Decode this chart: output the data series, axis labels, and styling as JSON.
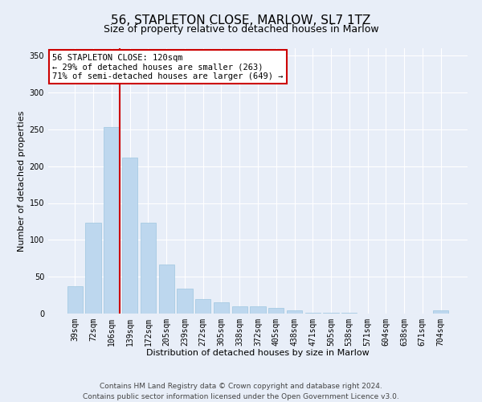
{
  "title": "56, STAPLETON CLOSE, MARLOW, SL7 1TZ",
  "subtitle": "Size of property relative to detached houses in Marlow",
  "xlabel": "Distribution of detached houses by size in Marlow",
  "ylabel": "Number of detached properties",
  "bar_labels": [
    "39sqm",
    "72sqm",
    "106sqm",
    "139sqm",
    "172sqm",
    "205sqm",
    "239sqm",
    "272sqm",
    "305sqm",
    "338sqm",
    "372sqm",
    "405sqm",
    "438sqm",
    "471sqm",
    "505sqm",
    "538sqm",
    "571sqm",
    "604sqm",
    "638sqm",
    "671sqm",
    "704sqm"
  ],
  "bar_values": [
    37,
    123,
    253,
    212,
    123,
    67,
    34,
    20,
    15,
    10,
    10,
    8,
    4,
    1,
    1,
    1,
    0,
    0,
    0,
    0,
    4
  ],
  "bar_color": "#bdd7ee",
  "bar_edge_color": "#9ec6e0",
  "background_color": "#e8eef8",
  "grid_color": "#ffffff",
  "vline_color": "#cc0000",
  "annotation_title": "56 STAPLETON CLOSE: 120sqm",
  "annotation_line1": "← 29% of detached houses are smaller (263)",
  "annotation_line2": "71% of semi-detached houses are larger (649) →",
  "annotation_box_color": "#ffffff",
  "annotation_box_edge": "#cc0000",
  "ylim": [
    0,
    360
  ],
  "yticks": [
    0,
    50,
    100,
    150,
    200,
    250,
    300,
    350
  ],
  "footer_line1": "Contains HM Land Registry data © Crown copyright and database right 2024.",
  "footer_line2": "Contains public sector information licensed under the Open Government Licence v3.0.",
  "title_fontsize": 11,
  "subtitle_fontsize": 9,
  "axis_label_fontsize": 8,
  "tick_fontsize": 7,
  "annotation_fontsize": 7.5,
  "footer_fontsize": 6.5
}
